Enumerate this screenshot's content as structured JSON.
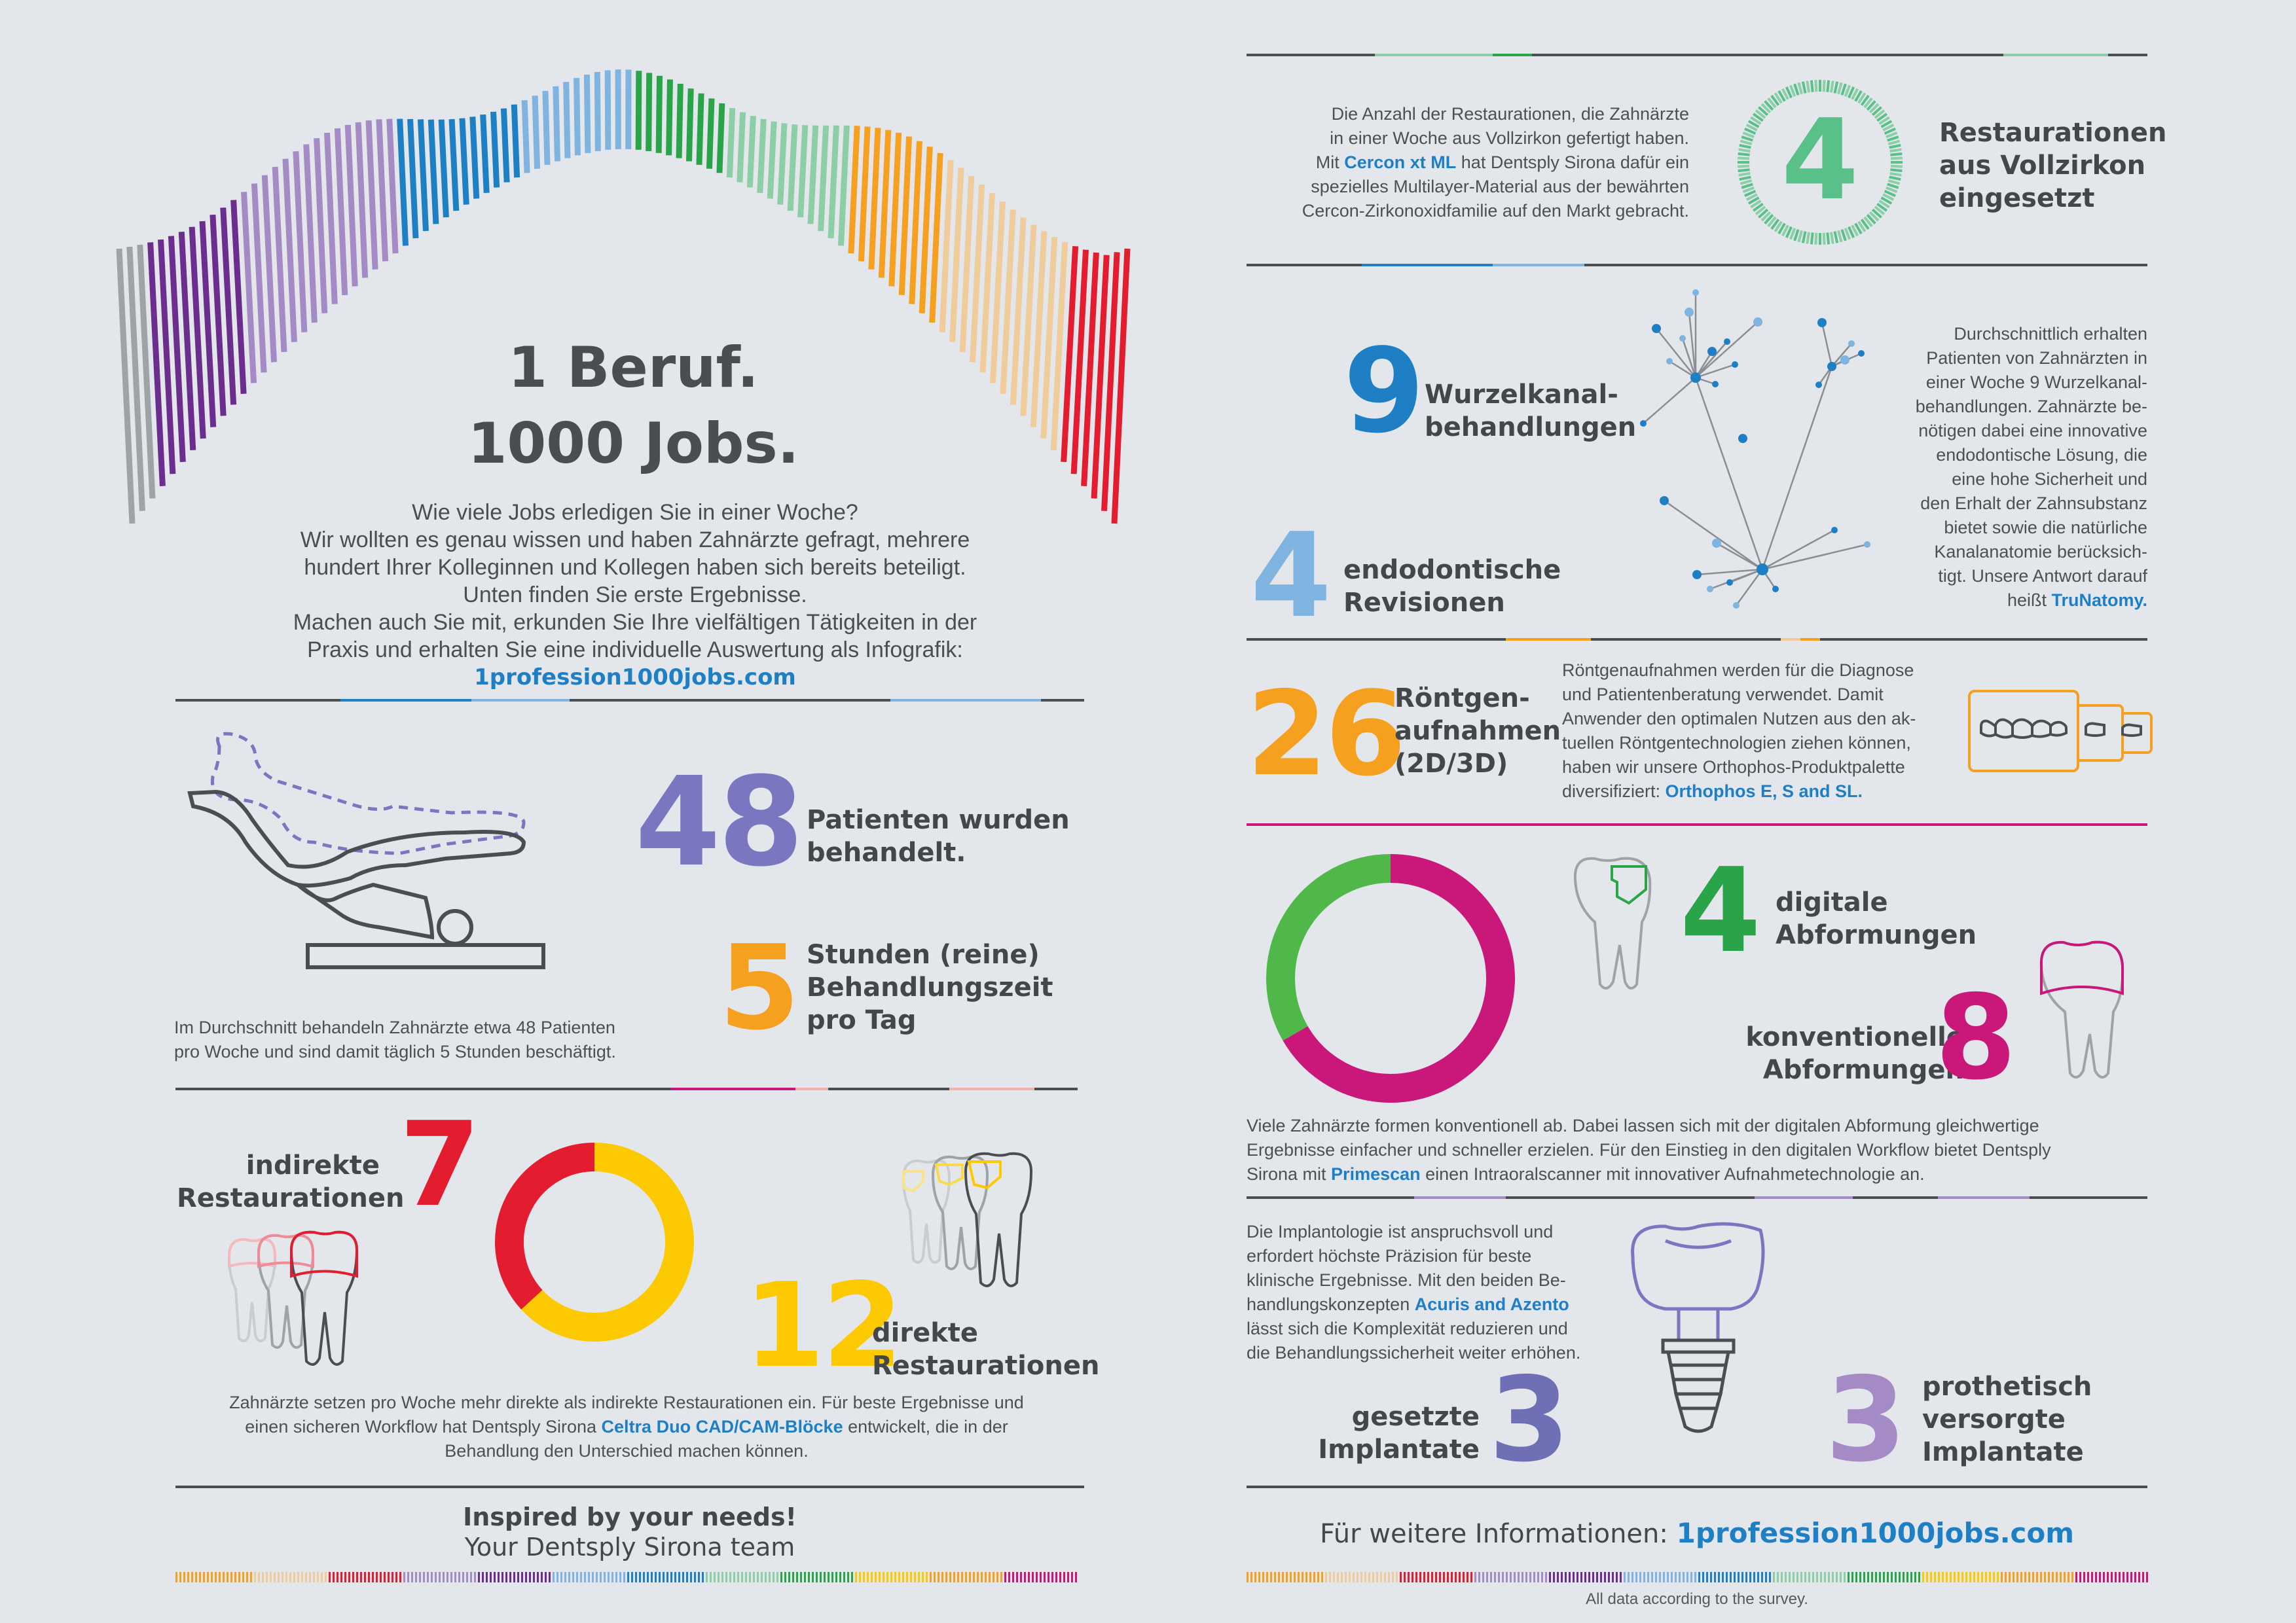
{
  "headline": {
    "line1": "1 Beruf.",
    "line2": "1000 Jobs."
  },
  "intro": {
    "lines": [
      "Wie viele Jobs erledigen Sie in einer Woche?",
      "Wir wollten es genau wissen und haben Zahnärzte gefragt, mehrere",
      "hundert Ihrer Kolleginnen und Kollegen haben sich bereits beteiligt.",
      "Unten finden Sie erste Ergebnisse.",
      "Machen auch Sie mit, erkunden Sie Ihre vielfältigen Tätigkeiten in der",
      "Praxis und erhalten Sie eine individuelle Auswertung als Infografik:"
    ],
    "link": "1profession1000jobs.com"
  },
  "patients": {
    "number": "48",
    "label1": "Patienten wurden",
    "label2": "behandelt.",
    "hours_number": "5",
    "hours1": "Stunden (reine)",
    "hours2": "Behandlungszeit",
    "hours3": "pro Tag",
    "note1": "Im Durchschnitt behandeln Zahnärzte etwa 48 Patienten",
    "note2": "pro Woche und sind damit täglich 5 Stunden beschäftigt."
  },
  "restorations": {
    "indirect_number": "7",
    "indirect1": "indirekte",
    "indirect2": "Restaurationen",
    "direct_number": "12",
    "direct1": "direkte",
    "direct2": "Restaurationen",
    "note1": "Zahnärzte setzen pro Woche mehr direkte als indirekte Restaurationen ein. Für beste Ergebnisse und",
    "note2a": "einen sicheren Workflow hat Dentsply Sirona ",
    "note2b": "Celtra Duo CAD/CAM-Blöcke",
    "note2c": " entwickelt, die in der",
    "note3": "Behandlung den Unterschied machen können.",
    "donut": {
      "direct": 12,
      "indirect": 7
    }
  },
  "footer_left": {
    "line1": "Inspired by your needs!",
    "line2": "Your Dentsply Sirona team"
  },
  "zirkon": {
    "number": "4",
    "label1": "Restaurationen",
    "label2": "aus Vollzirkon",
    "label3": "eingesetzt",
    "t1": "Die Anzahl der Restaurationen, die Zahnärzte",
    "t2": "in einer Woche aus Vollzirkon gefertigt haben.",
    "t3a": "Mit ",
    "t3b": "Cercon xt ML",
    "t3c": " hat Dentsply Sirona dafür ein",
    "t4": "spezielles Multilayer-Material aus der bewährten",
    "t5": "Cercon-Zirkonoxidfamilie auf den Markt gebracht."
  },
  "endo": {
    "number": "9",
    "label1": "Wurzelkanal-",
    "label2": "behandlungen",
    "rev_number": "4",
    "rev1": "endodontische",
    "rev2": "Revisionen",
    "lines": [
      "Durchschnittlich erhalten",
      "Patienten von Zahnärzten in",
      "einer Woche 9 Wurzelkanal-",
      "behandlungen. Zahnärzte be-",
      "nötigen dabei eine innovative",
      "endodontische Lösung, die",
      "eine hohe Sicherheit und",
      "den Erhalt der Zahnsubstanz",
      "bietet sowie die natürliche",
      "Kanalanatomie berücksich-",
      "tigt. Unsere Antwort darauf"
    ],
    "last_a": "heißt ",
    "last_b": "TruNatomy."
  },
  "xray": {
    "number": "26",
    "label1": "Röntgen-",
    "label2": "aufnahmen",
    "label3": "(2D/3D)",
    "lines": [
      "Röntgenaufnahmen werden für die Diagnose",
      "und Patientenberatung verwendet. Damit",
      "Anwender den optimalen Nutzen aus den ak-",
      "tuellen Röntgentechnologien ziehen können,",
      "haben wir unsere Orthophos-Produktpalette"
    ],
    "last_a": "diversifiziert:  ",
    "last_b": "Orthophos E, S and SL."
  },
  "impressions": {
    "digital_number": "4",
    "digital1": "digitale",
    "digital2": "Abformungen",
    "conv_number": "8",
    "conv1": "konventionelle",
    "conv2": "Abformungen",
    "t1": "Viele Zahnärzte formen konventionell ab. Dabei lassen sich mit der digitalen Abformung gleichwertige",
    "t2": "Ergebnisse einfacher und schneller erzielen. Für den Einstieg in den digitalen Workflow bietet Dentsply",
    "t3a": "Sirona mit ",
    "t3b": "Primescan",
    "t3c": " einen Intraoralscanner mit innovativer Aufnahmetechnologie an.",
    "donut": {
      "digital": 4,
      "conventional": 8
    }
  },
  "implants": {
    "t1": "Die Implantologie ist anspruchsvoll und",
    "t2": "erfordert höchste Präzision für beste",
    "t3": "klinische Ergebnisse. Mit den beiden Be-",
    "t4a": "handlungskonzepten ",
    "t4b": "Acuris and Azento",
    "t5": "lässt sich die Komplexität reduzieren und",
    "t6": "die Behandlungssicherheit weiter erhöhen.",
    "set_number": "3",
    "set1": "gesetzte",
    "set2": "Implantate",
    "pro_number": "3",
    "pro1": "prothetisch",
    "pro2": "versorgte",
    "pro3": "Implantate"
  },
  "footer_right": {
    "prefix": "Für weitere Informationen: ",
    "link": "1profession1000jobs.com",
    "note": "All data according to the survey."
  },
  "colors": {
    "purple": "#6b2d8e",
    "lavender": "#a48bc5",
    "blue": "#1e7fc4",
    "lightblue": "#7fb3e0",
    "green": "#2aa449",
    "mint": "#8ccfa6",
    "orange": "#f5a01e",
    "peach": "#f0cc9a",
    "red": "#e31d2f",
    "magenta": "#c9177a",
    "yellow": "#fdc900",
    "indigo": "#6f6fb5"
  }
}
